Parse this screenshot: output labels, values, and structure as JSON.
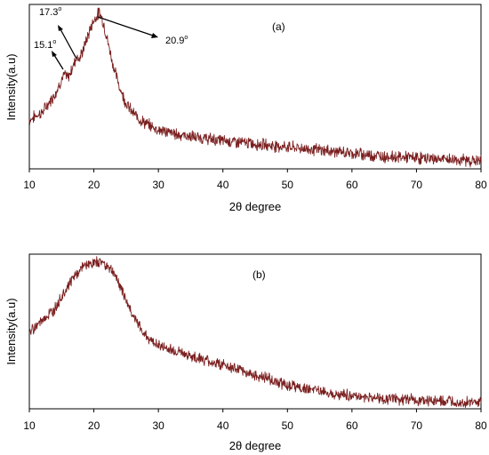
{
  "chart_data": [
    {
      "type": "line",
      "panel_label": "(a)",
      "xlabel": "2θ degree",
      "ylabel": "Intensity(a.u)",
      "xlim": [
        10,
        80
      ],
      "ylim": [
        0,
        1.05
      ],
      "y_tick_labels": "none",
      "grid": false,
      "legend": "none",
      "color": "#7a1e1e",
      "x_ticks": [
        "10",
        "20",
        "30",
        "40",
        "50",
        "60",
        "70",
        "80"
      ],
      "series": [
        {
          "x": [
            10,
            11,
            12,
            13,
            14,
            15,
            15.5,
            16,
            16.5,
            17,
            17.3,
            17.8,
            18.5,
            19,
            19.5,
            20,
            20.5,
            20.9,
            21.5,
            22,
            23,
            24,
            25,
            26,
            27,
            28,
            30,
            33,
            36,
            40,
            45,
            50,
            55,
            60,
            65,
            70,
            75,
            80
          ],
          "y": [
            0.31,
            0.34,
            0.36,
            0.42,
            0.48,
            0.57,
            0.6,
            0.58,
            0.63,
            0.68,
            0.72,
            0.7,
            0.78,
            0.84,
            0.9,
            0.95,
            0.98,
            1.0,
            0.93,
            0.84,
            0.66,
            0.52,
            0.42,
            0.36,
            0.32,
            0.29,
            0.25,
            0.22,
            0.2,
            0.18,
            0.16,
            0.14,
            0.12,
            0.1,
            0.08,
            0.07,
            0.06,
            0.05
          ]
        }
      ],
      "annotations": [
        {
          "label_main": "15.1",
          "label_sup": "o",
          "x": 15.1
        },
        {
          "label_main": "17.3",
          "label_sup": "o",
          "x": 17.3
        },
        {
          "label_main": "20.9",
          "label_sup": "o",
          "x": 20.9
        }
      ]
    },
    {
      "type": "line",
      "panel_label": "(b)",
      "xlabel": "2θ degree",
      "ylabel": "Intensity(a.u)",
      "xlim": [
        10,
        80
      ],
      "ylim": [
        0,
        1.05
      ],
      "y_tick_labels": "none",
      "grid": false,
      "legend": "none",
      "color": "#7a1e1e",
      "x_ticks": [
        "10",
        "20",
        "30",
        "40",
        "50",
        "60",
        "70",
        "80"
      ],
      "series": [
        {
          "x": [
            10,
            11,
            12,
            13,
            14,
            15,
            16,
            17,
            18,
            19,
            20,
            21,
            22,
            23,
            24,
            25,
            26,
            27,
            28,
            29,
            30,
            32,
            35,
            38,
            40,
            42,
            45,
            48,
            50,
            55,
            60,
            65,
            70,
            75,
            80
          ],
          "y": [
            0.52,
            0.56,
            0.6,
            0.64,
            0.68,
            0.76,
            0.84,
            0.9,
            0.95,
            0.98,
            0.99,
            1.0,
            0.98,
            0.93,
            0.84,
            0.74,
            0.64,
            0.56,
            0.5,
            0.46,
            0.43,
            0.4,
            0.36,
            0.32,
            0.3,
            0.27,
            0.23,
            0.19,
            0.16,
            0.12,
            0.09,
            0.07,
            0.06,
            0.05,
            0.04
          ]
        }
      ]
    }
  ]
}
